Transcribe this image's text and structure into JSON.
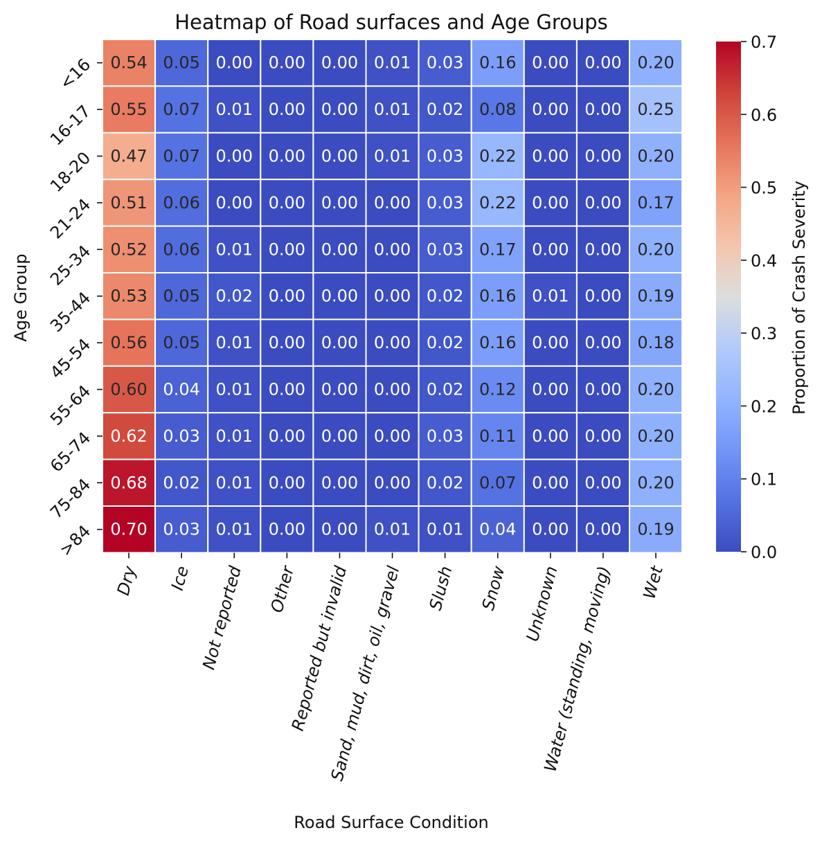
{
  "chart_data": {
    "type": "heatmap",
    "title": "Heatmap of Road surfaces and Age Groups",
    "xlabel": "Road Surface Condition",
    "ylabel": "Age Group",
    "colorbar_label": "Proportion of Crash Severity",
    "colormap": "coolwarm",
    "vmin": 0.0,
    "vmax": 0.7,
    "colorbar_ticks": [
      "0.0",
      "0.1",
      "0.2",
      "0.3",
      "0.4",
      "0.5",
      "0.6",
      "0.7"
    ],
    "x_categories": [
      "Dry",
      "Ice",
      "Not reported",
      "Other",
      "Reported but invalid",
      "Sand, mud, dirt, oil, gravel",
      "Slush",
      "Snow",
      "Unknown",
      "Water (standing, moving)",
      "Wet"
    ],
    "y_categories": [
      "<16",
      "16-17",
      "18-20",
      "21-24",
      "25-34",
      "35-44",
      "45-54",
      "55-64",
      "65-74",
      "75-84",
      ">84"
    ],
    "values": [
      [
        0.54,
        0.05,
        0.0,
        0.0,
        0.0,
        0.01,
        0.03,
        0.16,
        0.0,
        0.0,
        0.2
      ],
      [
        0.55,
        0.07,
        0.01,
        0.0,
        0.0,
        0.01,
        0.02,
        0.08,
        0.0,
        0.0,
        0.25
      ],
      [
        0.47,
        0.07,
        0.0,
        0.0,
        0.0,
        0.01,
        0.03,
        0.22,
        0.0,
        0.0,
        0.2
      ],
      [
        0.51,
        0.06,
        0.0,
        0.0,
        0.0,
        0.0,
        0.03,
        0.22,
        0.0,
        0.0,
        0.17
      ],
      [
        0.52,
        0.06,
        0.01,
        0.0,
        0.0,
        0.0,
        0.03,
        0.17,
        0.0,
        0.0,
        0.2
      ],
      [
        0.53,
        0.05,
        0.02,
        0.0,
        0.0,
        0.0,
        0.02,
        0.16,
        0.01,
        0.0,
        0.19
      ],
      [
        0.56,
        0.05,
        0.01,
        0.0,
        0.0,
        0.0,
        0.02,
        0.16,
        0.0,
        0.0,
        0.18
      ],
      [
        0.6,
        0.04,
        0.01,
        0.0,
        0.0,
        0.0,
        0.02,
        0.12,
        0.0,
        0.0,
        0.2
      ],
      [
        0.62,
        0.03,
        0.01,
        0.0,
        0.0,
        0.0,
        0.03,
        0.11,
        0.0,
        0.0,
        0.2
      ],
      [
        0.68,
        0.02,
        0.01,
        0.0,
        0.0,
        0.0,
        0.02,
        0.07,
        0.0,
        0.0,
        0.2
      ],
      [
        0.7,
        0.03,
        0.01,
        0.0,
        0.0,
        0.01,
        0.01,
        0.04,
        0.0,
        0.0,
        0.19
      ]
    ],
    "value_format": "2 decimals",
    "grid_line_color": "#ffffff"
  }
}
